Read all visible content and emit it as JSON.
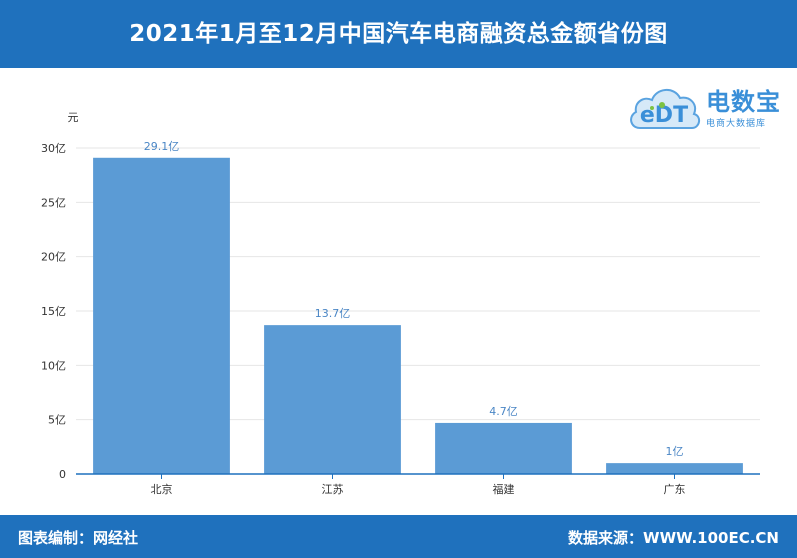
{
  "header": {
    "title": "2021年1月至12月中国汽车电商融资总金额省份图"
  },
  "footer": {
    "left": "图表编制：网经社",
    "right": "数据来源：WWW.100EC.CN"
  },
  "logo": {
    "mark": "eDT",
    "name": "电数宝",
    "subtitle": "电商大数据库",
    "accent": "#3a8fd8"
  },
  "colors": {
    "header": "#1f71bd",
    "bar": "#5b9bd5",
    "label": "#4a86c5",
    "axis": "#1f71bd"
  },
  "chart_data": {
    "type": "bar",
    "ylabel": "元",
    "categories": [
      "北京",
      "江苏",
      "福建",
      "广东"
    ],
    "values": [
      29.1,
      13.7,
      4.7,
      1
    ],
    "value_labels": [
      "29.1亿",
      "13.7亿",
      "4.7亿",
      "1亿"
    ],
    "ylim": [
      0,
      30
    ],
    "yticks": [
      0,
      5,
      10,
      15,
      20,
      25,
      30
    ],
    "ytick_labels": [
      "0",
      "5亿",
      "10亿",
      "15亿",
      "20亿",
      "25亿",
      "30亿"
    ],
    "grid": true,
    "legend": "none"
  }
}
